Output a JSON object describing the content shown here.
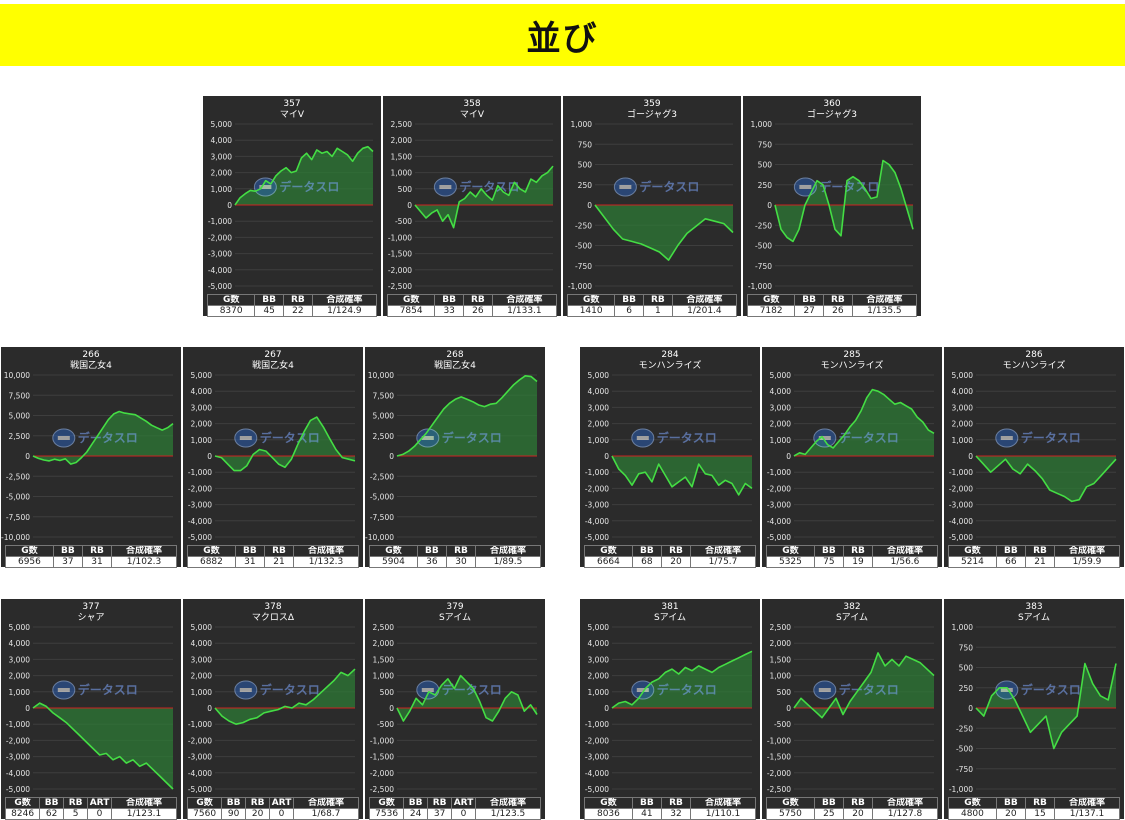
{
  "header": {
    "title": "並び"
  },
  "colors": {
    "background": "#2b2b2b",
    "line": "#44dd44",
    "fill": "#2e7a36",
    "zero": "#cc2222",
    "banner": "#ffff00"
  },
  "watermark": {
    "icon": "slot-logo-icon",
    "text": "データスロ"
  },
  "chart_data": [
    {
      "type": "line",
      "id": "357",
      "machine": "マイV",
      "ylim": [
        -5000,
        5000
      ],
      "ticks": [
        5000,
        4000,
        3000,
        2000,
        1000,
        0,
        -1000,
        -2000,
        -3000,
        -4000,
        -5000
      ],
      "values": [
        0,
        450,
        700,
        900,
        850,
        1000,
        1500,
        1300,
        1800,
        2100,
        2300,
        2000,
        2100,
        2900,
        3200,
        2800,
        3400,
        3200,
        3300,
        3000,
        3500,
        3300,
        3100,
        2700,
        3200,
        3500,
        3600,
        3300
      ],
      "stats": {
        "headers": [
          "G数",
          "BB",
          "RB",
          "合成確率"
        ],
        "values": [
          "8370",
          "45",
          "22",
          "1/124.9"
        ]
      }
    },
    {
      "type": "line",
      "id": "358",
      "machine": "マイV",
      "ylim": [
        -2500,
        2500
      ],
      "ticks": [
        2500,
        2000,
        1500,
        1000,
        500,
        0,
        -500,
        -1000,
        -1500,
        -2000,
        -2500
      ],
      "values": [
        0,
        -200,
        -400,
        -250,
        -150,
        -500,
        -300,
        -700,
        100,
        200,
        400,
        250,
        500,
        300,
        150,
        600,
        400,
        300,
        700,
        500,
        400,
        800,
        700,
        900,
        1000,
        1200
      ],
      "stats": {
        "headers": [
          "G数",
          "BB",
          "RB",
          "合成確率"
        ],
        "values": [
          "7854",
          "33",
          "26",
          "1/133.1"
        ]
      }
    },
    {
      "type": "line",
      "id": "359",
      "machine": "ゴージャグ3",
      "ylim": [
        -1000,
        1000
      ],
      "ticks": [
        1000,
        750,
        500,
        250,
        0,
        -250,
        -500,
        -750,
        -1000
      ],
      "values": [
        0,
        -150,
        -300,
        -420,
        -450,
        -480,
        -530,
        -580,
        -680,
        -500,
        -350,
        -260,
        -170,
        -200,
        -230,
        -340
      ],
      "stats": {
        "headers": [
          "G数",
          "BB",
          "RB",
          "合成確率"
        ],
        "values": [
          "1410",
          "6",
          "1",
          "1/201.4"
        ]
      }
    },
    {
      "type": "line",
      "id": "360",
      "machine": "ゴージャグ3",
      "ylim": [
        -1000,
        1000
      ],
      "ticks": [
        1000,
        750,
        500,
        250,
        0,
        -250,
        -500,
        -750,
        -1000
      ],
      "values": [
        0,
        -300,
        -400,
        -450,
        -300,
        0,
        150,
        300,
        250,
        0,
        -300,
        -380,
        300,
        350,
        300,
        200,
        80,
        100,
        550,
        500,
        400,
        200,
        -50,
        -300
      ],
      "stats": {
        "headers": [
          "G数",
          "BB",
          "RB",
          "合成確率"
        ],
        "values": [
          "7182",
          "27",
          "26",
          "1/135.5"
        ]
      }
    },
    {
      "type": "line",
      "id": "266",
      "machine": "戦国乙女4",
      "ylim": [
        -10000,
        10000
      ],
      "ticks": [
        10000,
        7500,
        5000,
        2500,
        0,
        -2500,
        -5000,
        -7500,
        -10000
      ],
      "values": [
        0,
        -300,
        -500,
        -600,
        -400,
        -550,
        -350,
        -1000,
        -800,
        -200,
        500,
        1500,
        2500,
        3500,
        4500,
        5200,
        5500,
        5300,
        5200,
        5100,
        4700,
        4300,
        3800,
        3500,
        3200,
        3500,
        4000
      ],
      "stats": {
        "headers": [
          "G数",
          "BB",
          "RB",
          "合成確率"
        ],
        "values": [
          "6956",
          "37",
          "31",
          "1/102.3"
        ]
      }
    },
    {
      "type": "line",
      "id": "267",
      "machine": "戦国乙女4",
      "ylim": [
        -5000,
        5000
      ],
      "ticks": [
        5000,
        4000,
        3000,
        2000,
        1000,
        0,
        -1000,
        -2000,
        -3000,
        -4000,
        -5000
      ],
      "values": [
        0,
        -100,
        -500,
        -900,
        -900,
        -600,
        100,
        400,
        300,
        -100,
        -500,
        -700,
        -200,
        700,
        1500,
        2200,
        2400,
        1800,
        1100,
        400,
        -100,
        -200,
        -300
      ],
      "stats": {
        "headers": [
          "G数",
          "BB",
          "RB",
          "合成確率"
        ],
        "values": [
          "6882",
          "31",
          "21",
          "1/132.3"
        ]
      }
    },
    {
      "type": "line",
      "id": "268",
      "machine": "戦国乙女4",
      "ylim": [
        -10000,
        10000
      ],
      "ticks": [
        10000,
        7500,
        5000,
        2500,
        0,
        -2500,
        -5000,
        -7500,
        -10000
      ],
      "values": [
        0,
        200,
        600,
        1200,
        2000,
        2800,
        3800,
        4800,
        5800,
        6500,
        7000,
        7300,
        7000,
        6700,
        6300,
        6100,
        6400,
        6500,
        7200,
        8000,
        8800,
        9400,
        9900,
        9800,
        9200
      ],
      "stats": {
        "headers": [
          "G数",
          "BB",
          "RB",
          "合成確率"
        ],
        "values": [
          "5904",
          "36",
          "30",
          "1/89.5"
        ]
      }
    },
    {
      "type": "line",
      "id": "284",
      "machine": "モンハンライズ",
      "ylim": [
        -5000,
        5000
      ],
      "ticks": [
        5000,
        4000,
        3000,
        2000,
        1000,
        0,
        -1000,
        -2000,
        -3000,
        -4000,
        -5000
      ],
      "values": [
        0,
        -800,
        -1200,
        -1800,
        -1100,
        -1000,
        -1600,
        -500,
        -1200,
        -1900,
        -1600,
        -1300,
        -1900,
        -500,
        -1100,
        -1200,
        -1800,
        -1500,
        -1700,
        -2400,
        -1700,
        -2000
      ],
      "stats": {
        "headers": [
          "G数",
          "BB",
          "RB",
          "合成確率"
        ],
        "values": [
          "6664",
          "68",
          "20",
          "1/75.7"
        ]
      }
    },
    {
      "type": "line",
      "id": "285",
      "machine": "モンハンライズ",
      "ylim": [
        -5000,
        5000
      ],
      "ticks": [
        5000,
        4000,
        3000,
        2000,
        1000,
        0,
        -1000,
        -2000,
        -3000,
        -4000,
        -5000
      ],
      "values": [
        0,
        200,
        100,
        500,
        900,
        1200,
        700,
        500,
        900,
        1300,
        1800,
        2200,
        2800,
        3600,
        4100,
        4000,
        3800,
        3500,
        3200,
        3300,
        3100,
        2900,
        2400,
        2100,
        1600,
        1400
      ],
      "stats": {
        "headers": [
          "G数",
          "BB",
          "RB",
          "合成確率"
        ],
        "values": [
          "5325",
          "75",
          "19",
          "1/56.6"
        ]
      }
    },
    {
      "type": "line",
      "id": "286",
      "machine": "モンハンライズ",
      "ylim": [
        -5000,
        5000
      ],
      "ticks": [
        5000,
        4000,
        3000,
        2000,
        1000,
        0,
        -1000,
        -2000,
        -3000,
        -4000,
        -5000
      ],
      "values": [
        0,
        -500,
        -1000,
        -600,
        -200,
        -800,
        -1100,
        -500,
        -900,
        -1400,
        -2100,
        -2300,
        -2500,
        -2800,
        -2700,
        -1900,
        -1700,
        -1200,
        -700,
        -200
      ],
      "stats": {
        "headers": [
          "G数",
          "BB",
          "RB",
          "合成確率"
        ],
        "values": [
          "5214",
          "66",
          "21",
          "1/59.9"
        ]
      }
    },
    {
      "type": "line",
      "id": "377",
      "machine": "シャア",
      "ylim": [
        -5000,
        5000
      ],
      "ticks": [
        5000,
        4000,
        3000,
        2000,
        1000,
        0,
        -1000,
        -2000,
        -3000,
        -4000,
        -5000
      ],
      "values": [
        0,
        300,
        100,
        -300,
        -600,
        -900,
        -1300,
        -1700,
        -2100,
        -2500,
        -2900,
        -2800,
        -3200,
        -3000,
        -3400,
        -3200,
        -3600,
        -3400,
        -3800,
        -4200,
        -4600,
        -5000
      ],
      "stats": {
        "headers": [
          "G数",
          "BB",
          "RB",
          "ART",
          "合成確率"
        ],
        "values": [
          "8246",
          "62",
          "5",
          "0",
          "1/123.1"
        ]
      }
    },
    {
      "type": "line",
      "id": "378",
      "machine": "マクロスΔ",
      "ylim": [
        -5000,
        5000
      ],
      "ticks": [
        5000,
        4000,
        3000,
        2000,
        1000,
        0,
        -1000,
        -2000,
        -3000,
        -4000,
        -5000
      ],
      "values": [
        0,
        -500,
        -800,
        -1000,
        -900,
        -700,
        -600,
        -300,
        -200,
        -100,
        100,
        0,
        300,
        200,
        500,
        900,
        1300,
        1700,
        2200,
        2000,
        2400
      ],
      "stats": {
        "headers": [
          "G数",
          "BB",
          "RB",
          "ART",
          "合成確率"
        ],
        "values": [
          "7560",
          "90",
          "20",
          "0",
          "1/68.7"
        ]
      }
    },
    {
      "type": "line",
      "id": "379",
      "machine": "Sアイム",
      "ylim": [
        -2500,
        2500
      ],
      "ticks": [
        2500,
        2000,
        1500,
        1000,
        500,
        0,
        -500,
        -1000,
        -1500,
        -2000,
        -2500
      ],
      "values": [
        0,
        -400,
        -100,
        300,
        100,
        500,
        400,
        700,
        900,
        600,
        1000,
        800,
        600,
        200,
        -300,
        -400,
        -100,
        300,
        500,
        400,
        -100,
        100,
        -200
      ],
      "stats": {
        "headers": [
          "G数",
          "BB",
          "RB",
          "ART",
          "合成確率"
        ],
        "values": [
          "7536",
          "24",
          "37",
          "0",
          "1/123.5"
        ]
      }
    },
    {
      "type": "line",
      "id": "381",
      "machine": "Sアイム",
      "ylim": [
        -5000,
        5000
      ],
      "ticks": [
        5000,
        4000,
        3000,
        2000,
        1000,
        0,
        -1000,
        -2000,
        -3000,
        -4000,
        -5000
      ],
      "values": [
        0,
        300,
        400,
        200,
        600,
        1200,
        1600,
        1800,
        2200,
        2400,
        2100,
        2500,
        2300,
        2600,
        2400,
        2200,
        2500,
        2700,
        2900,
        3100,
        3300,
        3500
      ],
      "stats": {
        "headers": [
          "G数",
          "BB",
          "RB",
          "合成確率"
        ],
        "values": [
          "8036",
          "41",
          "32",
          "1/110.1"
        ]
      }
    },
    {
      "type": "line",
      "id": "382",
      "machine": "Sアイム",
      "ylim": [
        -2500,
        2500
      ],
      "ticks": [
        2500,
        2000,
        1500,
        1000,
        500,
        0,
        -500,
        -1000,
        -1500,
        -2000,
        -2500
      ],
      "values": [
        0,
        300,
        100,
        -100,
        -300,
        0,
        300,
        -200,
        200,
        500,
        800,
        1100,
        1700,
        1300,
        1500,
        1300,
        1600,
        1500,
        1400,
        1200,
        1000
      ],
      "stats": {
        "headers": [
          "G数",
          "BB",
          "RB",
          "合成確率"
        ],
        "values": [
          "5750",
          "25",
          "20",
          "1/127.8"
        ]
      }
    },
    {
      "type": "line",
      "id": "383",
      "machine": "Sアイム",
      "ylim": [
        -1000,
        1000
      ],
      "ticks": [
        1000,
        750,
        500,
        250,
        0,
        -250,
        -500,
        -750,
        -1000
      ],
      "values": [
        0,
        -100,
        150,
        250,
        250,
        100,
        -100,
        -300,
        -200,
        -100,
        -500,
        -300,
        -200,
        -100,
        550,
        300,
        150,
        100,
        550
      ],
      "stats": {
        "headers": [
          "G数",
          "BB",
          "RB",
          "合成確率"
        ],
        "values": [
          "4800",
          "20",
          "15",
          "1/137.1"
        ]
      }
    }
  ]
}
